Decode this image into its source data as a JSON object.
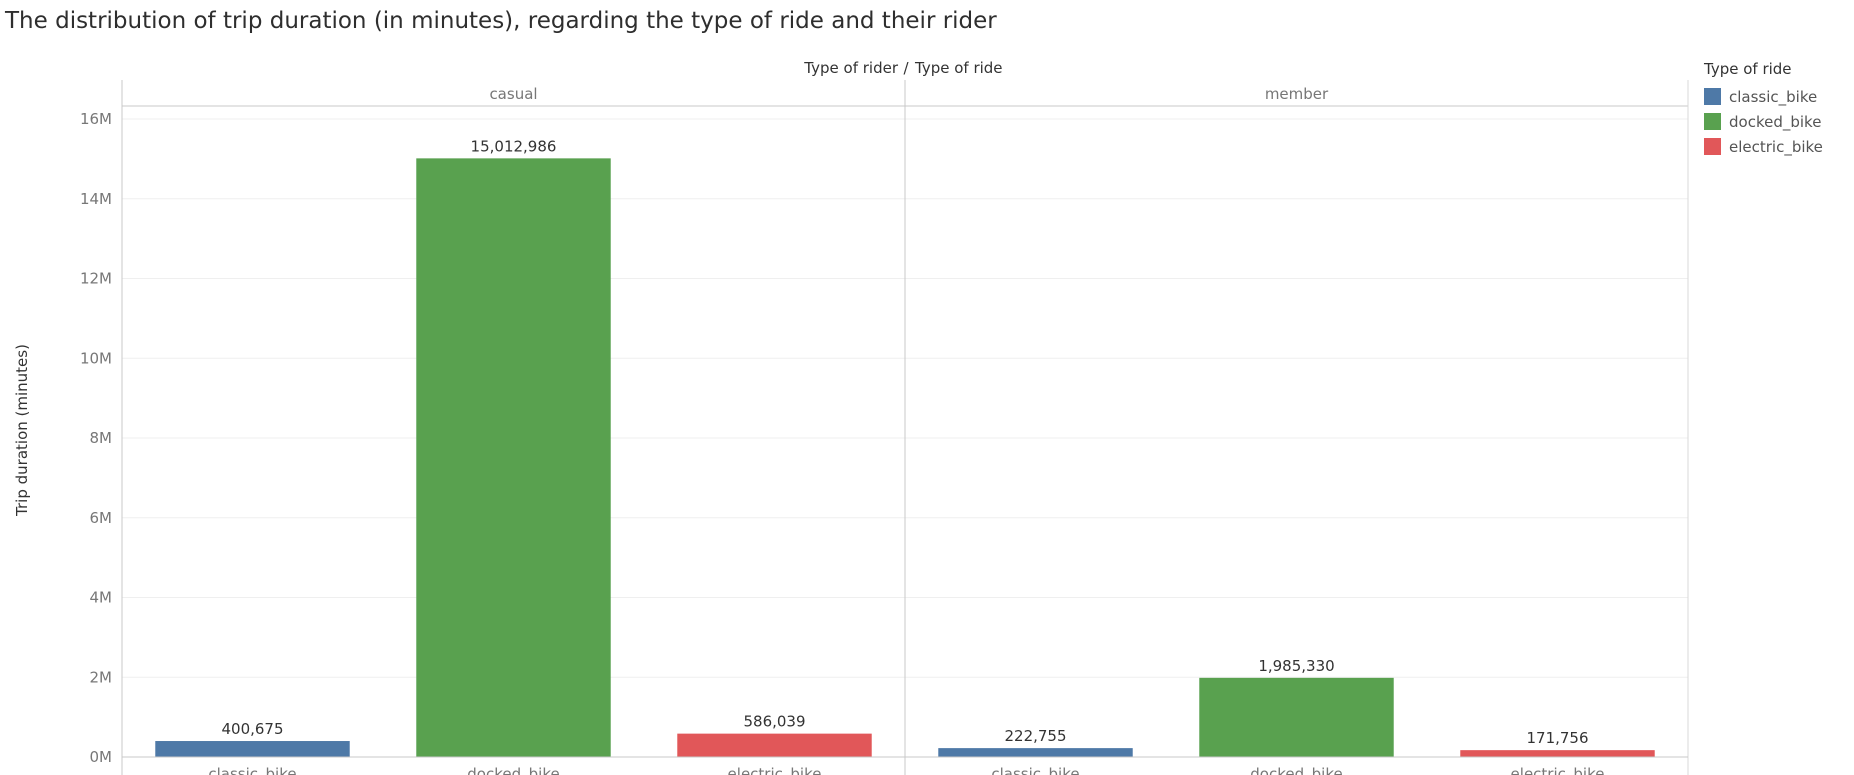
{
  "title": "The distribution of trip duration (in minutes), regarding the type of ride and their rider",
  "header": {
    "left": "Type of rider",
    "separator": "/",
    "right": "Type of ride"
  },
  "legend": {
    "title": "Type of ride",
    "items": [
      {
        "label": "classic_bike",
        "color": "#4e79a7"
      },
      {
        "label": "docked_bike",
        "color": "#59a14f"
      },
      {
        "label": "electric_bike",
        "color": "#e15759"
      }
    ]
  },
  "chart_data": {
    "type": "bar",
    "ylabel": "Trip duration (minutes)",
    "ylim": [
      0,
      16000000
    ],
    "yticks": [
      0,
      2000000,
      4000000,
      6000000,
      8000000,
      10000000,
      12000000,
      14000000,
      16000000
    ],
    "ytick_labels": [
      "0M",
      "2M",
      "4M",
      "6M",
      "8M",
      "10M",
      "12M",
      "14M",
      "16M"
    ],
    "grid": true,
    "panels": [
      {
        "name": "casual",
        "categories": [
          "classic_bike",
          "docked_bike",
          "electric_bike"
        ],
        "values": [
          400675,
          15012986,
          586039
        ],
        "labels": [
          "400,675",
          "15,012,986",
          "586,039"
        ]
      },
      {
        "name": "member",
        "categories": [
          "classic_bike",
          "docked_bike",
          "electric_bike"
        ],
        "values": [
          222755,
          1985330,
          171756
        ],
        "labels": [
          "222,755",
          "1,985,330",
          "171,756"
        ]
      }
    ]
  }
}
